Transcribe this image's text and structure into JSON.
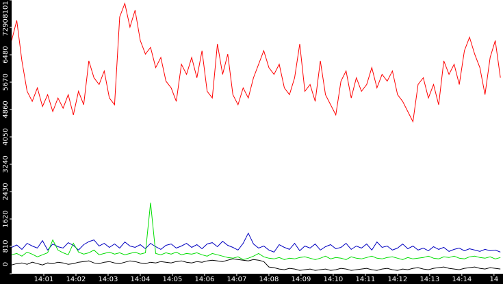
{
  "chart_data": {
    "type": "line",
    "x": [
      0,
      0.16,
      0.32,
      0.48,
      0.64,
      0.8,
      0.96,
      1.12,
      1.28,
      1.44,
      1.6,
      1.76,
      1.92,
      2.08,
      2.24,
      2.4,
      2.56,
      2.72,
      2.88,
      3.04,
      3.2,
      3.36,
      3.52,
      3.68,
      3.84,
      4,
      4.16,
      4.32,
      4.48,
      4.64,
      4.8,
      4.96,
      5.12,
      5.28,
      5.44,
      5.6,
      5.76,
      5.92,
      6.08,
      6.24,
      6.4,
      6.56,
      6.72,
      6.88,
      7.04,
      7.2,
      7.36,
      7.52,
      7.68,
      7.84,
      8,
      8.16,
      8.32,
      8.48,
      8.64,
      8.8,
      8.96,
      9.12,
      9.28,
      9.44,
      9.6,
      9.76,
      9.92,
      10.08,
      10.24,
      10.4,
      10.56,
      10.72,
      10.88,
      11.04,
      11.2,
      11.36,
      11.52,
      11.68,
      11.84,
      12,
      12.16,
      12.32,
      12.48,
      12.64,
      12.8,
      12.96,
      13.12,
      13.28,
      13.44,
      13.6,
      13.76,
      13.92,
      14.08,
      14.24,
      14.4,
      14.56,
      14.72,
      14.88,
      15.04,
      15.2
    ],
    "series": [
      {
        "color": "#ff0000",
        "values": [
          6900,
          7500,
          6300,
          5400,
          5100,
          5500,
          4950,
          5300,
          4800,
          5200,
          4900,
          5300,
          4700,
          5400,
          5000,
          6300,
          5800,
          5600,
          6000,
          5200,
          5000,
          7600,
          8000,
          7300,
          7800,
          6900,
          6500,
          6700,
          6100,
          6400,
          5700,
          5500,
          5100,
          6200,
          5900,
          6400,
          5800,
          6600,
          5400,
          5200,
          6800,
          5900,
          6500,
          5300,
          5000,
          5500,
          5200,
          5800,
          6200,
          6600,
          6100,
          5900,
          6200,
          5500,
          5300,
          5800,
          6800,
          5400,
          5600,
          5100,
          6300,
          5300,
          5000,
          4700,
          5700,
          6000,
          5200,
          5800,
          5400,
          5600,
          6100,
          5500,
          5900,
          5700,
          6000,
          5300,
          5100,
          4800,
          4500,
          5600,
          5800,
          5200,
          5600,
          5000,
          6300,
          5900,
          6200,
          5600,
          6600,
          7000,
          6500,
          6100,
          5300,
          6400,
          6900,
          5800
        ]
      },
      {
        "color": "#0000c0",
        "values": [
          780,
          850,
          720,
          900,
          820,
          760,
          980,
          700,
          880,
          800,
          760,
          920,
          840,
          700,
          860,
          950,
          1000,
          820,
          900,
          780,
          880,
          760,
          940,
          820,
          780,
          860,
          740,
          900,
          800,
          720,
          840,
          880,
          760,
          820,
          900,
          780,
          860,
          740,
          880,
          920,
          800,
          960,
          840,
          780,
          700,
          900,
          1200,
          880,
          760,
          820,
          700,
          640,
          860,
          780,
          720,
          900,
          680,
          820,
          760,
          880,
          700,
          800,
          860,
          740,
          780,
          900,
          720,
          820,
          760,
          880,
          700,
          940,
          780,
          820,
          700,
          760,
          880,
          740,
          820,
          700,
          760,
          680,
          800,
          720,
          780,
          660,
          720,
          760,
          680,
          740,
          700,
          660,
          720,
          680,
          700,
          640
        ]
      },
      {
        "color": "#00dd00",
        "values": [
          560,
          600,
          520,
          640,
          580,
          500,
          560,
          620,
          1000,
          700,
          620,
          560,
          900,
          640,
          580,
          620,
          700,
          560,
          600,
          640,
          580,
          620,
          560,
          600,
          640,
          580,
          620,
          2100,
          600,
          560,
          620,
          580,
          640,
          560,
          600,
          580,
          620,
          560,
          520,
          600,
          560,
          520,
          480,
          460,
          500,
          420,
          460,
          520,
          600,
          500,
          460,
          440,
          480,
          420,
          460,
          440,
          480,
          500,
          460,
          420,
          460,
          520,
          440,
          480,
          460,
          420,
          500,
          460,
          440,
          480,
          520,
          460,
          440,
          480,
          500,
          460,
          420,
          480,
          440,
          460,
          480,
          520,
          460,
          440,
          500,
          480,
          520,
          460,
          440,
          500,
          520,
          480,
          460,
          500,
          440,
          480
        ]
      },
      {
        "color": "#000000",
        "values": [
          260,
          300,
          320,
          280,
          340,
          300,
          260,
          320,
          300,
          340,
          320,
          280,
          300,
          340,
          360,
          380,
          320,
          300,
          340,
          360,
          320,
          300,
          340,
          380,
          360,
          320,
          300,
          340,
          320,
          360,
          340,
          320,
          360,
          380,
          340,
          320,
          360,
          340,
          380,
          400,
          380,
          360,
          400,
          440,
          420,
          400,
          380,
          420,
          400,
          360,
          200,
          180,
          140,
          120,
          160,
          140,
          100,
          120,
          140,
          100,
          120,
          140,
          100,
          120,
          160,
          140,
          100,
          120,
          140,
          160,
          120,
          100,
          140,
          160,
          120,
          100,
          140,
          120,
          160,
          180,
          140,
          120,
          160,
          180,
          200,
          160,
          140,
          120,
          160,
          180,
          200,
          160,
          140,
          180,
          160,
          140
        ]
      }
    ],
    "xlim": [
      0,
      15.28
    ],
    "xticks": [
      {
        "value": 1,
        "label": "14:01"
      },
      {
        "value": 2,
        "label": "14:02"
      },
      {
        "value": 3,
        "label": "14:03"
      },
      {
        "value": 4,
        "label": "14:04"
      },
      {
        "value": 5,
        "label": "14:05"
      },
      {
        "value": 6,
        "label": "14:06"
      },
      {
        "value": 7,
        "label": "14:07"
      },
      {
        "value": 8,
        "label": "14:08"
      },
      {
        "value": 9,
        "label": "14:09"
      },
      {
        "value": 10,
        "label": "14:10"
      },
      {
        "value": 11,
        "label": "14:11"
      },
      {
        "value": 12,
        "label": "14:12"
      },
      {
        "value": 13,
        "label": "14:13"
      },
      {
        "value": 14,
        "label": "14:14"
      },
      {
        "value": 15,
        "label": "14"
      }
    ],
    "ylim": [
      0,
      8101
    ],
    "yticks": [
      0,
      810,
      1620,
      2430,
      3240,
      4050,
      4860,
      5670,
      6480,
      7290,
      8101
    ],
    "grid": false
  }
}
